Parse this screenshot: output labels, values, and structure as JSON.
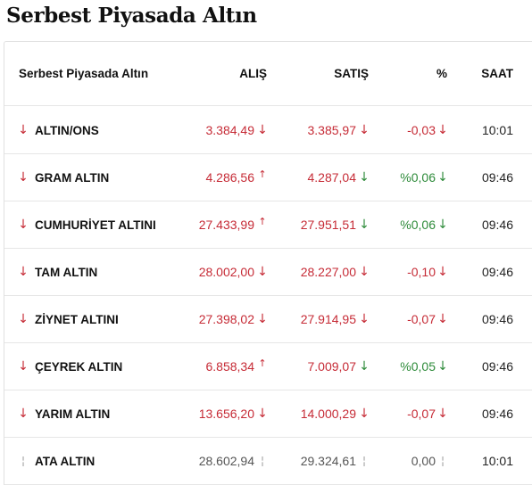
{
  "title": "Serbest Piyasada Altın",
  "colors": {
    "down": "#c62b36",
    "up": "#2e8b3a",
    "neutral": "#555555"
  },
  "table": {
    "headers": {
      "name": "Serbest Piyasada Altın",
      "buy": "ALIŞ",
      "sell": "SATIŞ",
      "pct": "%",
      "time": "SAAT"
    },
    "rows": [
      {
        "trend": "down",
        "name": "ALTIN/ONS",
        "buy": "3.384,49",
        "buy_dir": "down",
        "sell": "3.385,97",
        "sell_dir": "down",
        "pct": "-0,03",
        "pct_dir": "down",
        "time": "10:01"
      },
      {
        "trend": "down",
        "name": "GRAM ALTIN",
        "buy": "4.286,56",
        "buy_dir": "up",
        "sell": "4.287,04",
        "sell_dir": "down-green",
        "pct": "%0,06",
        "pct_dir": "down-green",
        "time": "09:46"
      },
      {
        "trend": "down",
        "name": "CUMHURİYET ALTINI",
        "buy": "27.433,99",
        "buy_dir": "up",
        "sell": "27.951,51",
        "sell_dir": "down-green",
        "pct": "%0,06",
        "pct_dir": "down-green",
        "time": "09:46"
      },
      {
        "trend": "down",
        "name": "TAM ALTIN",
        "buy": "28.002,00",
        "buy_dir": "down",
        "sell": "28.227,00",
        "sell_dir": "down",
        "pct": "-0,10",
        "pct_dir": "down",
        "time": "09:46"
      },
      {
        "trend": "down",
        "name": "ZİYNET ALTINI",
        "buy": "27.398,02",
        "buy_dir": "down",
        "sell": "27.914,95",
        "sell_dir": "down",
        "pct": "-0,07",
        "pct_dir": "down",
        "time": "09:46"
      },
      {
        "trend": "down",
        "name": "ÇEYREK ALTIN",
        "buy": "6.858,34",
        "buy_dir": "up",
        "sell": "7.009,07",
        "sell_dir": "down-green",
        "pct": "%0,05",
        "pct_dir": "down-green",
        "time": "09:46"
      },
      {
        "trend": "down",
        "name": "YARIM ALTIN",
        "buy": "13.656,20",
        "buy_dir": "down",
        "sell": "14.000,29",
        "sell_dir": "down",
        "pct": "-0,07",
        "pct_dir": "down",
        "time": "09:46"
      },
      {
        "trend": "neutral",
        "name": "ATA ALTIN",
        "buy": "28.602,94",
        "buy_dir": "neutral",
        "sell": "29.324,61",
        "sell_dir": "neutral",
        "pct": "0,00",
        "pct_dir": "neutral",
        "time": "10:01"
      }
    ]
  }
}
